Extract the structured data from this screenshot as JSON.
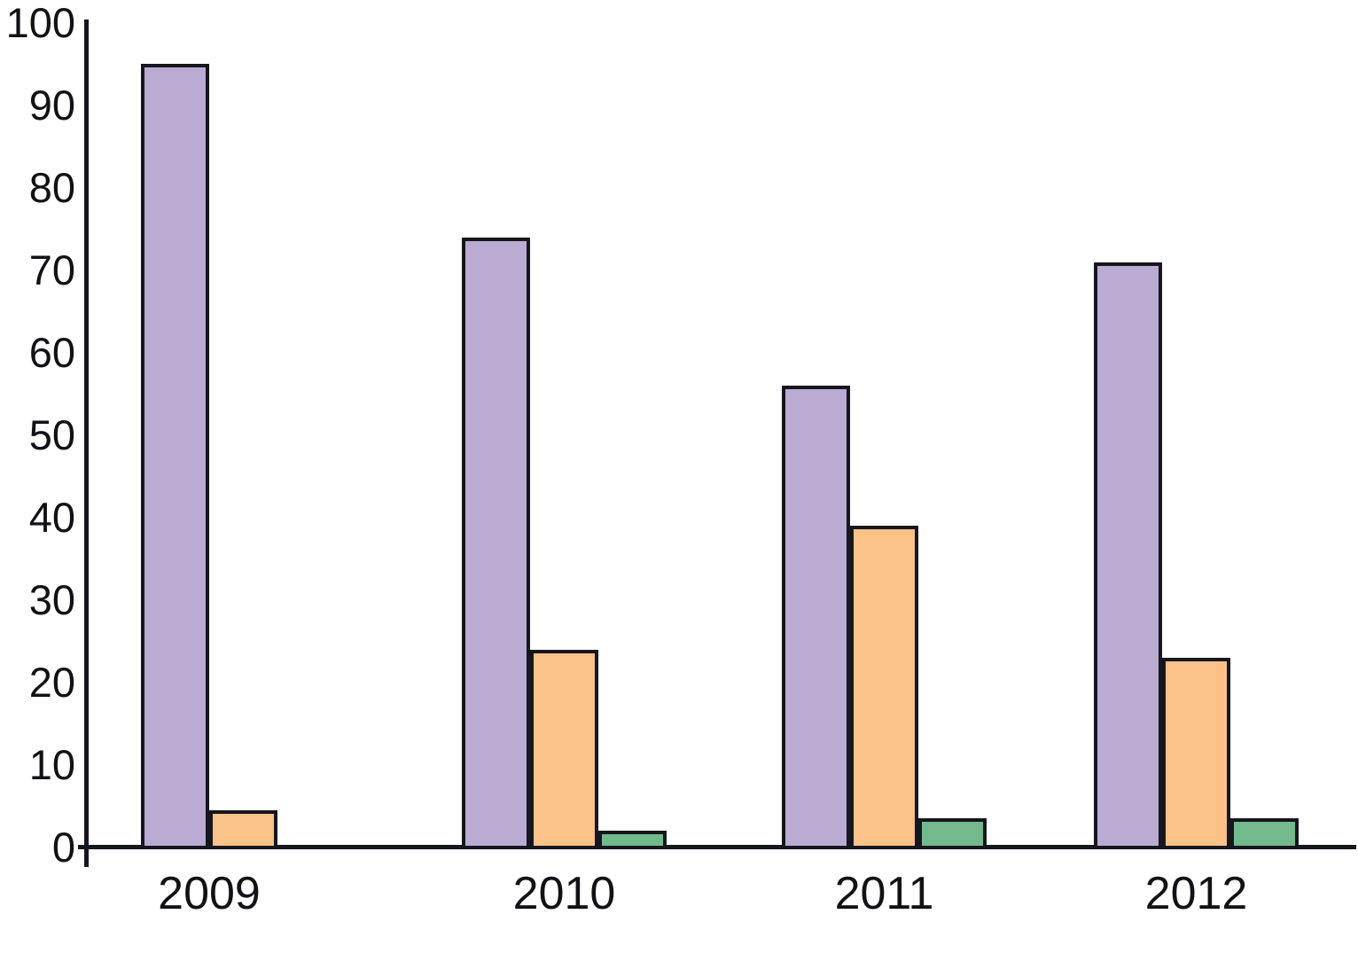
{
  "chart_data": {
    "type": "bar",
    "title": "",
    "subtitle": "",
    "xlabel": "",
    "ylabel": "",
    "categories": [
      "2009",
      "2010",
      "2011",
      "2012"
    ],
    "series": [
      {
        "name": "purple",
        "color": "#b9abd2",
        "values": [
          95,
          74,
          56,
          71
        ]
      },
      {
        "name": "orange",
        "color": "#fbc288",
        "values": [
          4.5,
          24,
          39,
          23
        ]
      },
      {
        "name": "green",
        "color": "#72ba8c",
        "values": [
          0,
          2,
          3.5,
          3.5
        ]
      }
    ],
    "ylim": [
      0,
      100
    ],
    "ytick_step": 10,
    "ytick_labels": [
      "0",
      "10",
      "20",
      "30",
      "40",
      "50",
      "60",
      "70",
      "80",
      "90",
      "100"
    ],
    "grid": false,
    "legend_position": "none",
    "bar_outline_color": "#16161e",
    "axis_color": "#16161e",
    "text_color": "#111116",
    "background_color": "#ffffff"
  }
}
